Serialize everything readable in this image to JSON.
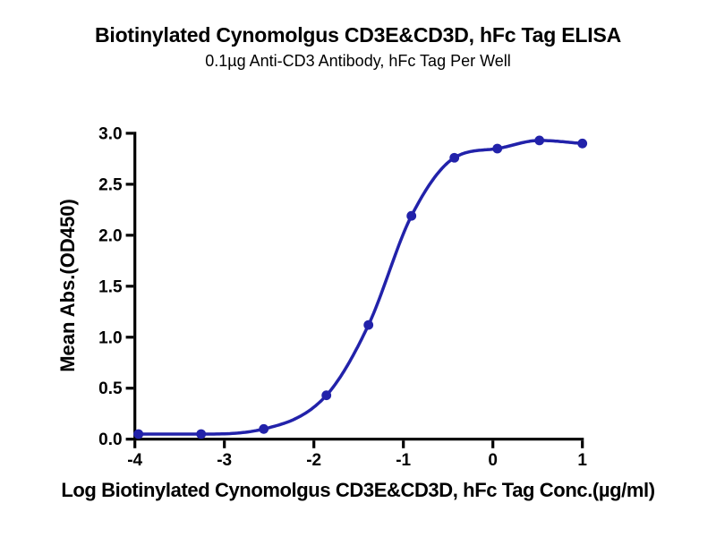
{
  "chart_data": {
    "type": "scatter",
    "curve": "sigmoidal dose-response fit through points",
    "title": "Biotinylated Cynomolgus CD3E&CD3D, hFc Tag ELISA",
    "subtitle": "0.1µg Anti-CD3 Antibody, hFc Tag Per Well",
    "xlabel": "Log Biotinylated Cynomolgus CD3E&CD3D, hFc Tag Conc.(µg/ml)",
    "ylabel": "Mean Abs.(OD450)",
    "series": [
      {
        "log_x": [
          -3.96,
          -3.26,
          -2.56,
          -1.86,
          -1.39,
          -0.91,
          -0.43,
          0.05,
          0.52,
          1.0
        ],
        "od450": [
          0.05,
          0.05,
          0.1,
          0.43,
          1.12,
          2.19,
          2.76,
          2.85,
          2.93,
          2.9
        ]
      }
    ],
    "xlim": [
      -4,
      1
    ],
    "ylim": [
      0,
      3
    ],
    "x_tick_values": [
      -4,
      -3,
      -2,
      -1,
      0,
      1
    ],
    "x_tick_labels": [
      "-4",
      "-3",
      "-2",
      "-1",
      "0",
      "1"
    ],
    "y_tick_values": [
      0,
      0.5,
      1,
      1.5,
      2,
      2.5,
      3
    ],
    "y_tick_labels": [
      "0.0",
      "0.5",
      "1.0",
      "1.5",
      "2.0",
      "2.5",
      "3.0"
    ],
    "grid": false,
    "legend": null,
    "colors": {
      "curve": "#2222AA",
      "marker": "#2222AA",
      "axis": "#000000",
      "text": "#000000",
      "background": "#FFFFFF"
    }
  }
}
